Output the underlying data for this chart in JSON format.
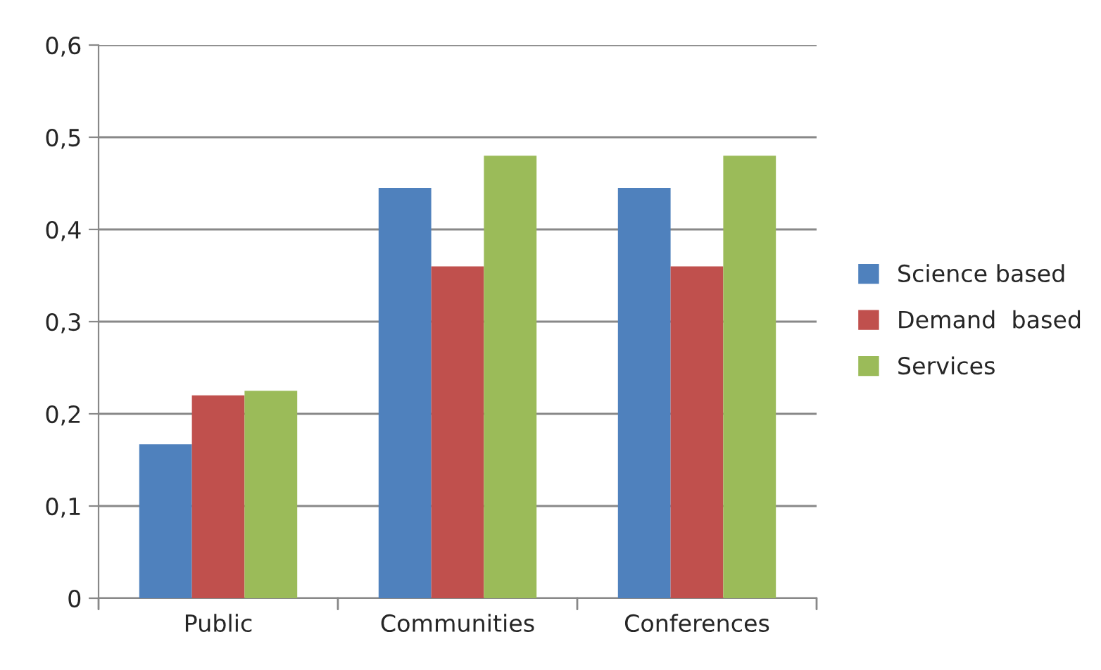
{
  "chart_data": {
    "type": "bar",
    "categories": [
      "Public",
      "Communities",
      "Conferences"
    ],
    "series": [
      {
        "name": "Science based",
        "color": "#4f81bd",
        "values": [
          0.167,
          0.445,
          0.445
        ]
      },
      {
        "name": "Demand  based",
        "color": "#c0504d",
        "values": [
          0.22,
          0.36,
          0.36
        ]
      },
      {
        "name": "Services",
        "color": "#9bbb59",
        "values": [
          0.225,
          0.48,
          0.48
        ]
      }
    ],
    "ylim": [
      0,
      0.6
    ],
    "yticks": [
      0,
      {
        "value": 0.1,
        "label": "0,1"
      },
      {
        "value": 0.2,
        "label": "0,2"
      },
      {
        "value": 0.3,
        "label": "0,3"
      },
      {
        "value": 0.4,
        "label": "0,4"
      },
      {
        "value": 0.5,
        "label": "0,5"
      },
      {
        "value": 0.6,
        "label": "0,6"
      }
    ],
    "grid": "y",
    "legend": "right"
  }
}
